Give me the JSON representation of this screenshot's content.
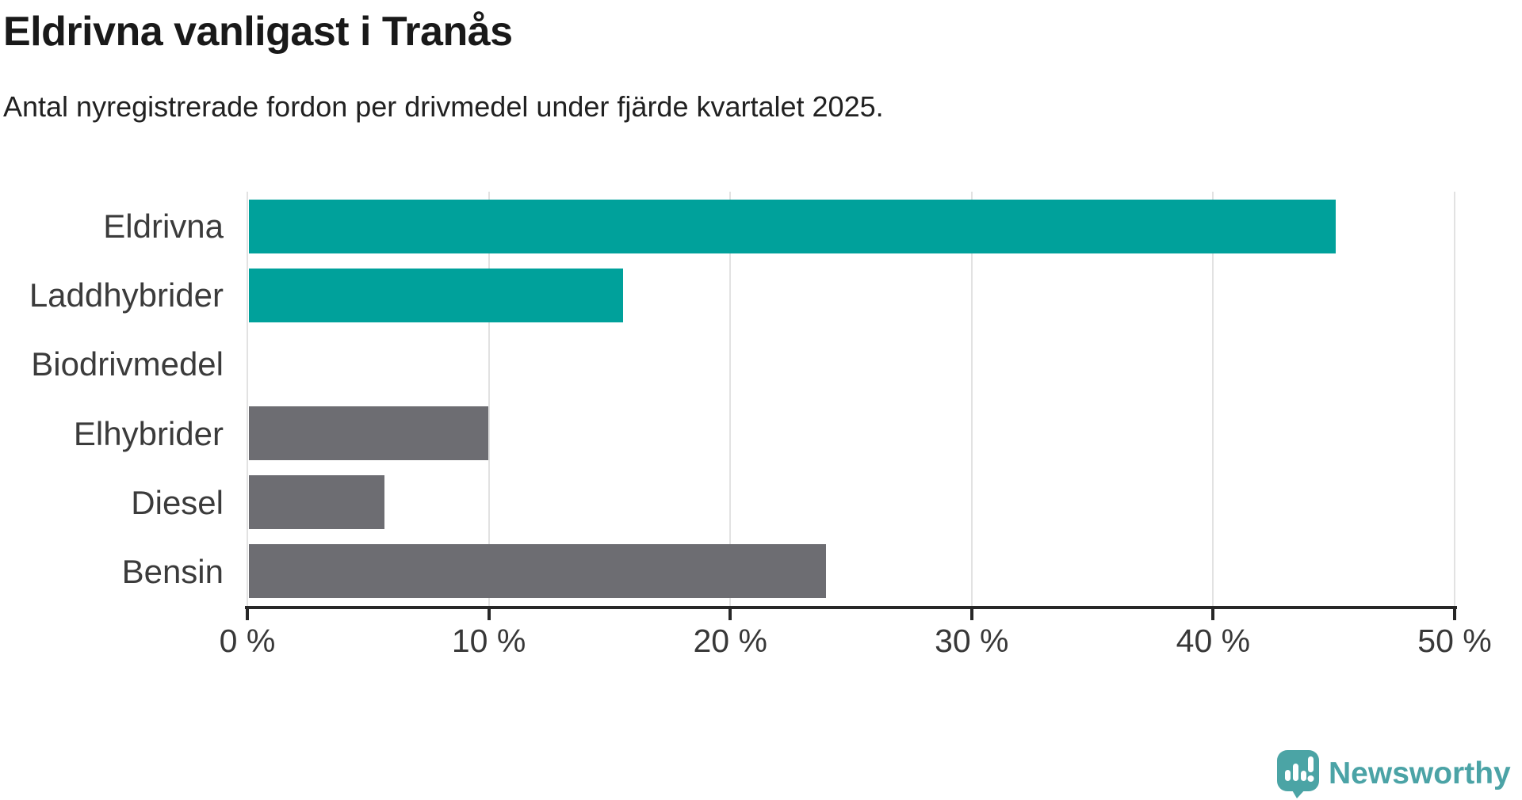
{
  "chart_data": {
    "type": "bar",
    "orientation": "horizontal",
    "title": "Eldrivna vanligast i Tranås",
    "subtitle": "Antal nyregistrerade fordon per drivmedel under fjärde kvartalet 2025.",
    "categories": [
      "Eldrivna",
      "Laddhybrider",
      "Biodrivmedel",
      "Elhybrider",
      "Diesel",
      "Bensin"
    ],
    "values": [
      45.0,
      15.5,
      0,
      9.9,
      5.6,
      23.9
    ],
    "unit": "%",
    "xlabel": "",
    "ylabel": "",
    "xlim": [
      0,
      50
    ],
    "xticks": [
      "0 %",
      "10 %",
      "20 %",
      "30 %",
      "40 %",
      "50 %"
    ],
    "grid": true,
    "legend": false,
    "bar_colors": [
      "#00a19b",
      "#00a19b",
      "#6d6d72",
      "#6d6d72",
      "#6d6d72",
      "#6d6d72"
    ]
  },
  "colors": {
    "accent_teal": "#00a19b",
    "neutral_gray": "#6d6d72",
    "gridline": "#e2e2e2",
    "axis": "#272727",
    "title_text": "#191919",
    "label_text": "#3b3b3b",
    "logo_teal": "#4ba3a6"
  },
  "branding": {
    "logo_text": "Newsworthy",
    "logo_icon": "newsworthy-pin-bar-chart-icon"
  }
}
